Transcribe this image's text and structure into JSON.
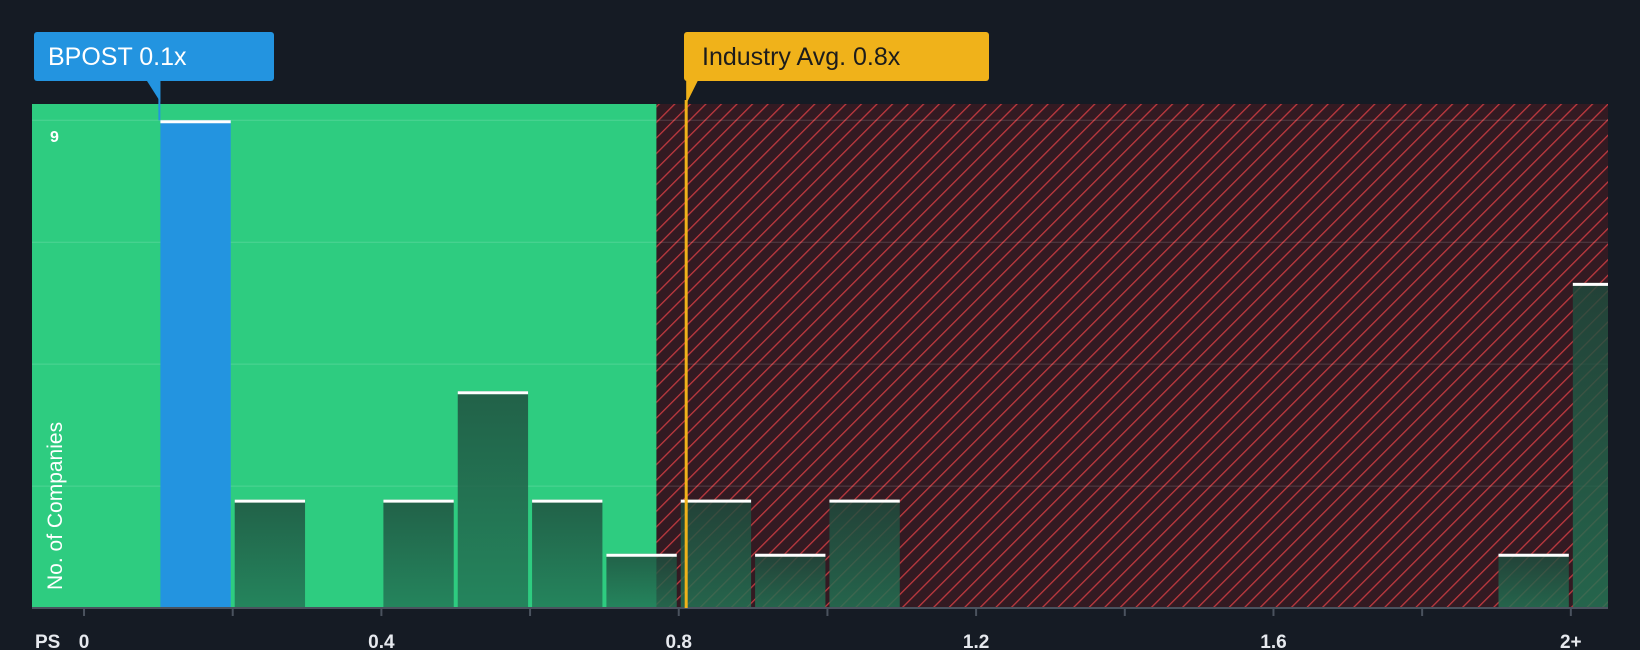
{
  "chart_data": {
    "type": "bar",
    "xlabel": "PS",
    "ylabel": "No. of Companies",
    "xlim": [
      -0.07,
      2.05
    ],
    "ylim": [
      0,
      9.3
    ],
    "x_ticks": [
      0,
      0.2,
      0.4,
      0.6,
      0.8,
      1.0,
      1.2,
      1.4,
      1.6,
      1.8,
      2.0
    ],
    "x_tick_labels": [
      {
        "value": 0,
        "label": "0"
      },
      {
        "value": 0.4,
        "label": "0.4"
      },
      {
        "value": 0.8,
        "label": "0.8"
      },
      {
        "value": 1.2,
        "label": "1.2"
      },
      {
        "value": 1.6,
        "label": "1.6"
      },
      {
        "value": 2.0,
        "label": "2+"
      }
    ],
    "y_grid": [
      0,
      2.25,
      4.5,
      6.75,
      9
    ],
    "y_top_label": "9",
    "bin_width": 0.1,
    "bars": [
      {
        "start": 0.1,
        "value": 9,
        "highlight": true
      },
      {
        "start": 0.2,
        "value": 2
      },
      {
        "start": 0.4,
        "value": 2
      },
      {
        "start": 0.5,
        "value": 4
      },
      {
        "start": 0.6,
        "value": 2
      },
      {
        "start": 0.7,
        "value": 1
      },
      {
        "start": 0.8,
        "value": 2
      },
      {
        "start": 0.9,
        "value": 1
      },
      {
        "start": 1.0,
        "value": 2
      },
      {
        "start": 1.9,
        "value": 1
      },
      {
        "start": 2.0,
        "value": 6
      }
    ],
    "fair_region_end": 0.77,
    "subject": {
      "name": "BPOST",
      "value": 0.1,
      "label": "BPOST 0.1x"
    },
    "industry_avg": {
      "value": 0.81,
      "label": "Industry Avg. 0.8x"
    },
    "colors": {
      "background": "#151b24",
      "fair_zone": "#2ecc80",
      "over_zone": "#331a22",
      "hatch": "#c0393f",
      "highlight_bar": "#2394e0",
      "bar_top": "#1f4a3c",
      "bar_bottom": "#227555",
      "avg_line": "#f0b21a",
      "subject_box": "#2394e0",
      "avg_box": "#f0b21a"
    }
  }
}
